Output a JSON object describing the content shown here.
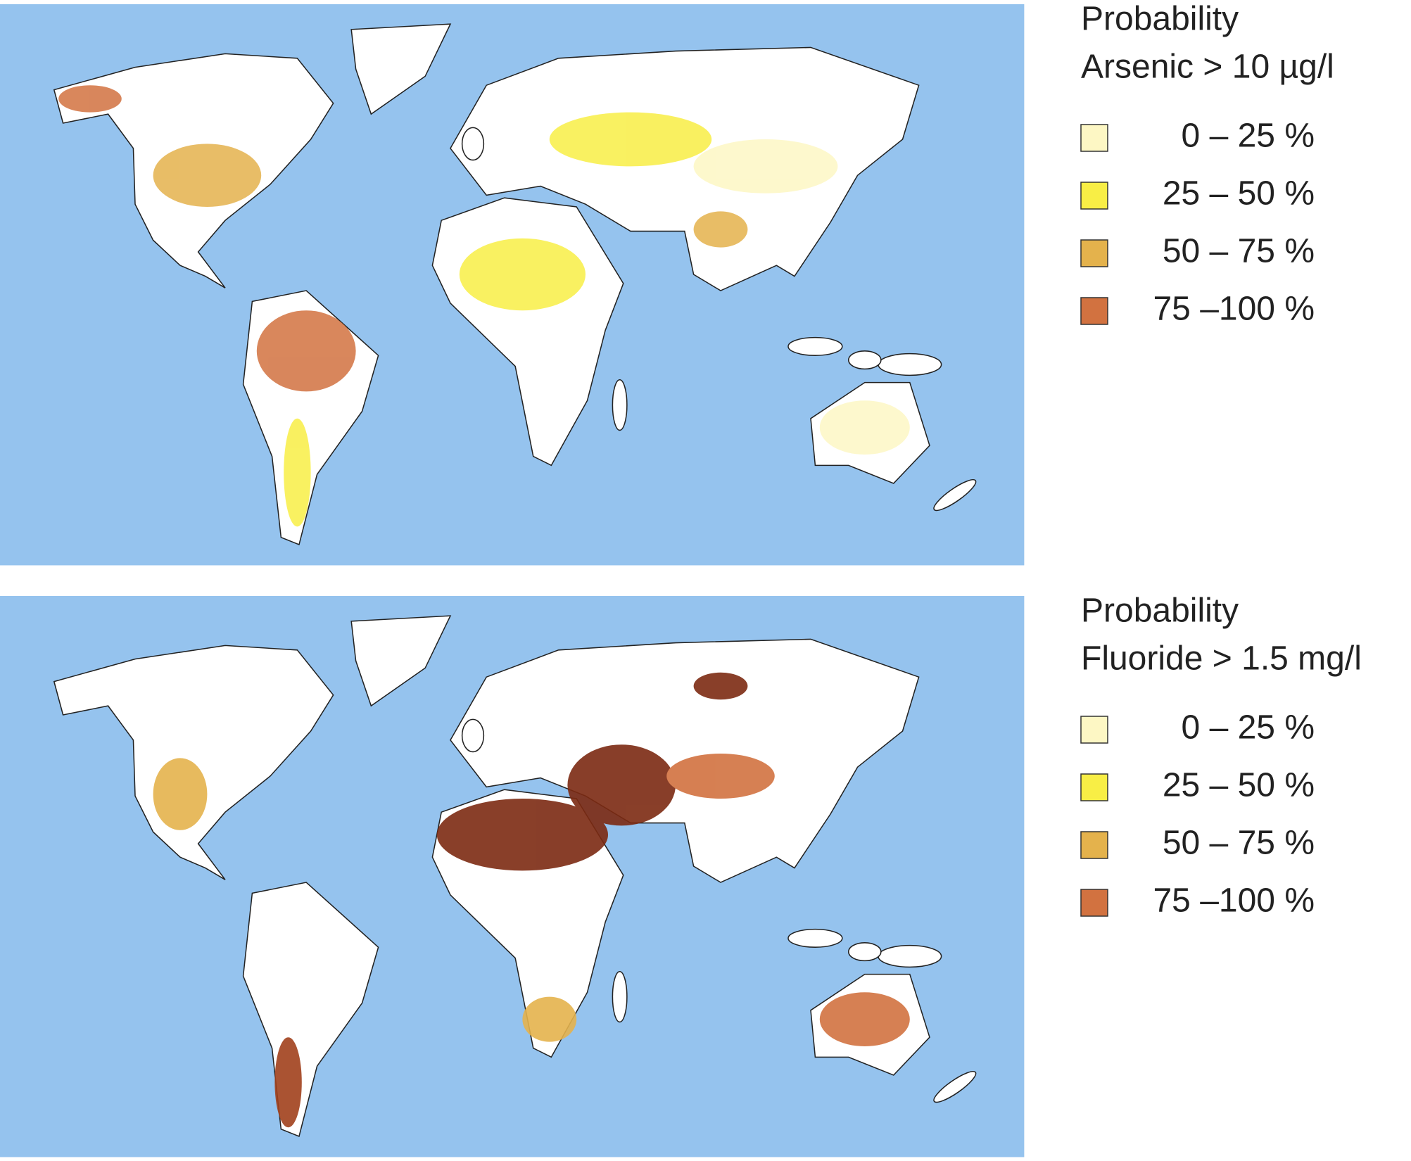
{
  "maps": [
    {
      "title": [
        "Probability",
        "Arsenic > 10 µg/l"
      ],
      "legend": [
        {
          "label": "0 –  25 %",
          "color": "#fdf7c4"
        },
        {
          "label": "25 –  50 %",
          "color": "#f8ee45"
        },
        {
          "label": "50 –  75 %",
          "color": "#e4b24c"
        },
        {
          "label": "75 –100 %",
          "color": "#d27240"
        }
      ]
    },
    {
      "title": [
        "Probability",
        "Fluoride > 1.5 mg/l"
      ],
      "legend": [
        {
          "label": "0 –  25 %",
          "color": "#fdf7c4"
        },
        {
          "label": "25 –  50 %",
          "color": "#f8ee45"
        },
        {
          "label": "50 –  75 %",
          "color": "#e4b24c"
        },
        {
          "label": "75 –100 %",
          "color": "#d27240"
        }
      ]
    }
  ]
}
